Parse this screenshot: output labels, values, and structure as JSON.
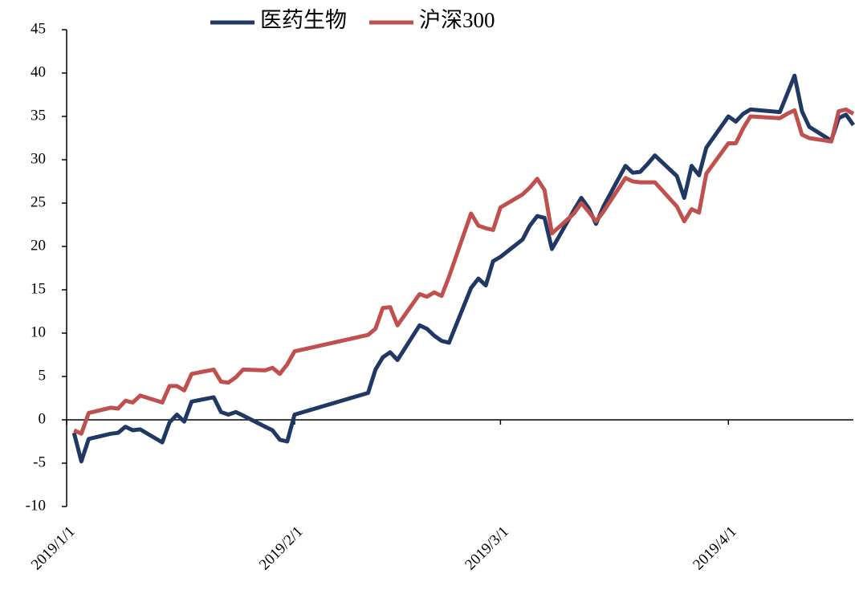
{
  "chart_data": {
    "type": "line",
    "x": [
      "2019/1/2",
      "2019/1/3",
      "2019/1/4",
      "2019/1/7",
      "2019/1/8",
      "2019/1/9",
      "2019/1/10",
      "2019/1/11",
      "2019/1/14",
      "2019/1/15",
      "2019/1/16",
      "2019/1/17",
      "2019/1/18",
      "2019/1/21",
      "2019/1/22",
      "2019/1/23",
      "2019/1/24",
      "2019/1/25",
      "2019/1/28",
      "2019/1/29",
      "2019/1/30",
      "2019/1/31",
      "2019/2/1",
      "2019/2/11",
      "2019/2/12",
      "2019/2/13",
      "2019/2/14",
      "2019/2/15",
      "2019/2/18",
      "2019/2/19",
      "2019/2/20",
      "2019/2/21",
      "2019/2/22",
      "2019/2/25",
      "2019/2/26",
      "2019/2/27",
      "2019/2/28",
      "2019/3/1",
      "2019/3/4",
      "2019/3/5",
      "2019/3/6",
      "2019/3/7",
      "2019/3/8",
      "2019/3/11",
      "2019/3/12",
      "2019/3/13",
      "2019/3/14",
      "2019/3/15",
      "2019/3/18",
      "2019/3/19",
      "2019/3/20",
      "2019/3/21",
      "2019/3/22",
      "2019/3/25",
      "2019/3/26",
      "2019/3/27",
      "2019/3/28",
      "2019/3/29",
      "2019/4/1",
      "2019/4/2",
      "2019/4/3",
      "2019/4/4",
      "2019/4/8",
      "2019/4/9",
      "2019/4/10",
      "2019/4/11",
      "2019/4/12",
      "2019/4/15",
      "2019/4/16",
      "2019/4/17",
      "2019/4/18"
    ],
    "series": [
      {
        "name": "医药生物",
        "color": "#1f3864",
        "values": [
          -1.5,
          -4.8,
          -2.2,
          -1.6,
          -1.5,
          -0.8,
          -1.2,
          -1.1,
          -2.6,
          -0.3,
          0.6,
          -0.2,
          2.1,
          2.6,
          0.9,
          0.6,
          0.9,
          0.5,
          -0.8,
          -1.2,
          -2.3,
          -2.5,
          0.6,
          3.1,
          5.8,
          7.2,
          7.8,
          6.9,
          10.9,
          10.5,
          9.7,
          9.1,
          8.9,
          15.2,
          16.3,
          15.5,
          18.3,
          18.8,
          20.8,
          22.4,
          23.5,
          23.3,
          19.7,
          24.2,
          25.6,
          24.4,
          22.6,
          24.6,
          29.3,
          28.5,
          28.6,
          29.5,
          30.5,
          28.1,
          25.6,
          29.3,
          28.2,
          31.4,
          35.0,
          34.4,
          35.3,
          35.8,
          35.5,
          37.6,
          39.7,
          35.6,
          33.8,
          32.2,
          34.8,
          35.2,
          34.0
        ]
      },
      {
        "name": "沪深300",
        "color": "#c0504d",
        "values": [
          -1.2,
          -1.6,
          0.8,
          1.4,
          1.3,
          2.2,
          2.0,
          2.8,
          2.0,
          3.9,
          3.9,
          3.4,
          5.3,
          5.8,
          4.4,
          4.3,
          4.9,
          5.8,
          5.7,
          6.0,
          5.3,
          6.4,
          7.9,
          9.8,
          10.5,
          12.9,
          13.0,
          10.9,
          14.5,
          14.2,
          14.7,
          14.3,
          16.5,
          23.8,
          22.4,
          22.1,
          21.9,
          24.5,
          26.0,
          26.8,
          27.8,
          26.5,
          21.5,
          23.8,
          25.0,
          24.0,
          22.9,
          24.0,
          27.9,
          27.5,
          27.4,
          27.4,
          27.4,
          24.6,
          22.9,
          24.3,
          23.9,
          28.4,
          31.9,
          31.9,
          33.6,
          35.0,
          34.8,
          35.3,
          35.7,
          32.9,
          32.5,
          32.1,
          35.6,
          35.8,
          35.3
        ]
      }
    ],
    "xlim": [
      "2019/1/1",
      "2019/4/18"
    ],
    "xticks": [
      "2019/1/1",
      "2019/2/1",
      "2019/3/1",
      "2019/4/1"
    ],
    "ylim": [
      -10,
      45
    ],
    "yticks": [
      -10,
      -5,
      0,
      5,
      10,
      15,
      20,
      25,
      30,
      35,
      40,
      45
    ],
    "legend": "top"
  }
}
